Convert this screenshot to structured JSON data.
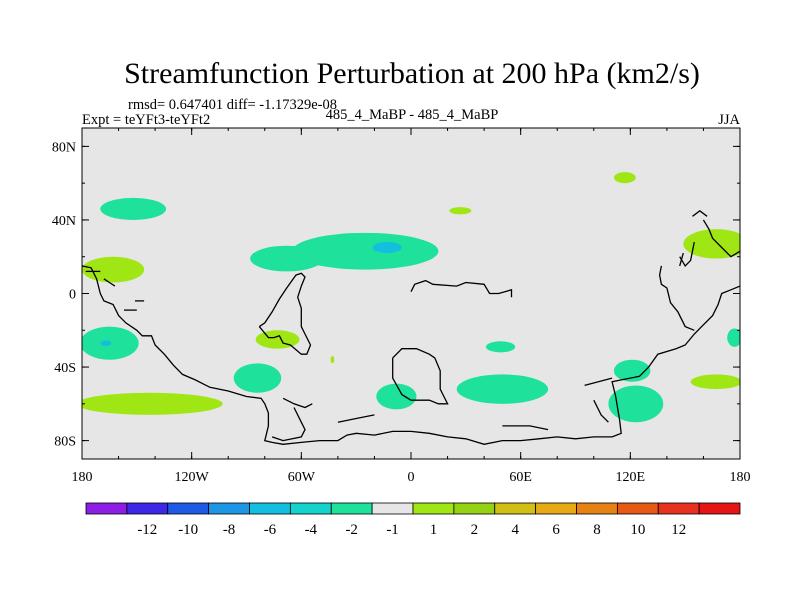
{
  "chart_data": {
    "type": "heatmap",
    "title": "Streamfunction Perturbation at 200 hPa (km2/s)",
    "stats": "rmsd= 0.647401 diff= -1.17329e-08",
    "left_label": "Expt = teYFt3-teYFt2",
    "center_label": "485_4_MaBP - 485_4_MaBP",
    "right_label": "JJA",
    "xlim": [
      -180,
      180
    ],
    "ylim": [
      -90,
      90
    ],
    "x_ticks": [
      {
        "value": -180,
        "label": "180"
      },
      {
        "value": -120,
        "label": "120W"
      },
      {
        "value": -60,
        "label": "60W"
      },
      {
        "value": 0,
        "label": "0"
      },
      {
        "value": 60,
        "label": "60E"
      },
      {
        "value": 120,
        "label": "120E"
      },
      {
        "value": 180,
        "label": "180"
      }
    ],
    "y_ticks": [
      {
        "value": 80,
        "label": "80N"
      },
      {
        "value": 40,
        "label": "40N"
      },
      {
        "value": 0,
        "label": "0"
      },
      {
        "value": -40,
        "label": "40S"
      },
      {
        "value": -80,
        "label": "80S"
      }
    ],
    "colorbar": {
      "colors": [
        "#8c1ee6",
        "#3c28e6",
        "#1e5ae6",
        "#1e96e6",
        "#14bede",
        "#14d2cc",
        "#1ee29c",
        "#e6e6e6",
        "#a0e614",
        "#96d214",
        "#d2be14",
        "#e6aa14",
        "#e68214",
        "#e65a14",
        "#e6321e",
        "#e61414"
      ],
      "labels": [
        "-12",
        "-10",
        "-8",
        "-6",
        "-4",
        "-2",
        "-1",
        "1",
        "2",
        "4",
        "6",
        "8",
        "10",
        "12"
      ]
    },
    "blobs": [
      {
        "level": "-1",
        "color": "#1ee29c",
        "lon": -152,
        "lat": 46,
        "rlon": 18,
        "rlat": 6
      },
      {
        "level": "-1",
        "color": "#1ee29c",
        "lon": -25,
        "lat": 23,
        "rlon": 40,
        "rlat": 10
      },
      {
        "level": "-1",
        "color": "#1ee29c",
        "lon": -68,
        "lat": 19,
        "rlon": 20,
        "rlat": 7
      },
      {
        "level": "-2",
        "color": "#14bede",
        "lon": -13,
        "lat": 25,
        "rlon": 8,
        "rlat": 3
      },
      {
        "level": "-1",
        "color": "#1ee29c",
        "lon": -165,
        "lat": -27,
        "rlon": 16,
        "rlat": 9
      },
      {
        "level": "-2",
        "color": "#14bede",
        "lon": -167,
        "lat": -27,
        "rlon": 3,
        "rlat": 1.5
      },
      {
        "level": "-1",
        "color": "#1ee29c",
        "lon": -84,
        "lat": -46,
        "rlon": 13,
        "rlat": 8
      },
      {
        "level": "-1",
        "color": "#1ee29c",
        "lon": -8,
        "lat": -56,
        "rlon": 11,
        "rlat": 7
      },
      {
        "level": "-1",
        "color": "#1ee29c",
        "lon": 50,
        "lat": -52,
        "rlon": 25,
        "rlat": 8
      },
      {
        "level": "-1",
        "color": "#1ee29c",
        "lon": 49,
        "lat": -29,
        "rlon": 8,
        "rlat": 3
      },
      {
        "level": "-1",
        "color": "#1ee29c",
        "lon": 121,
        "lat": -42,
        "rlon": 10,
        "rlat": 6
      },
      {
        "level": "-1",
        "color": "#1ee29c",
        "lon": 123,
        "lat": -60,
        "rlon": 15,
        "rlat": 10
      },
      {
        "level": "-1",
        "color": "#1ee29c",
        "lon": 177,
        "lat": -24,
        "rlon": 4,
        "rlat": 5
      },
      {
        "level": "1",
        "color": "#a0e614",
        "lon": -163,
        "lat": 13,
        "rlon": 17,
        "rlat": 7
      },
      {
        "level": "1",
        "color": "#a0e614",
        "lon": -143,
        "lat": -60,
        "rlon": 40,
        "rlat": 6
      },
      {
        "level": "1",
        "color": "#a0e614",
        "lon": -73,
        "lat": -25,
        "rlon": 12,
        "rlat": 5
      },
      {
        "level": "1",
        "color": "#a0e614",
        "lon": 117,
        "lat": 63,
        "rlon": 6,
        "rlat": 3
      },
      {
        "level": "1",
        "color": "#a0e614",
        "lon": 27,
        "lat": 45,
        "rlon": 6,
        "rlat": 2
      },
      {
        "level": "1",
        "color": "#a0e614",
        "lon": 167,
        "lat": 27,
        "rlon": 18,
        "rlat": 8
      },
      {
        "level": "1",
        "color": "#a0e614",
        "lon": 167,
        "lat": -48,
        "rlon": 14,
        "rlat": 4
      },
      {
        "level": "1",
        "color": "#a0e614",
        "lon": -43,
        "lat": -36,
        "rlon": 1,
        "rlat": 2
      }
    ],
    "coastlines": [
      [
        [
          -180,
          15
        ],
        [
          -175,
          14
        ],
        [
          -172,
          8
        ],
        [
          -170,
          0
        ],
        [
          -168,
          -4
        ],
        [
          -163,
          -6
        ],
        [
          -160,
          -12
        ],
        [
          -156,
          -16
        ],
        [
          -150,
          -20
        ],
        [
          -147,
          -23
        ],
        [
          -142,
          -23
        ],
        [
          -140,
          -28
        ],
        [
          -135,
          -33
        ],
        [
          -130,
          -39
        ],
        [
          -125,
          -44
        ],
        [
          -118,
          -47
        ],
        [
          -110,
          -51
        ],
        [
          -100,
          -53
        ],
        [
          -90,
          -56
        ],
        [
          -82,
          -57
        ],
        [
          -80,
          -60
        ],
        [
          -78,
          -65
        ],
        [
          -78,
          -72
        ],
        [
          -79,
          -76
        ],
        [
          -80,
          -80
        ],
        [
          -76,
          -81
        ],
        [
          -70,
          -82
        ],
        [
          -60,
          -81
        ],
        [
          -50,
          -80
        ],
        [
          -40,
          -80
        ],
        [
          -35,
          -77
        ],
        [
          -30,
          -76
        ],
        [
          -20,
          -77
        ],
        [
          -10,
          -75
        ],
        [
          0,
          -75
        ],
        [
          10,
          -76
        ],
        [
          20,
          -78
        ],
        [
          30,
          -79
        ],
        [
          40,
          -82
        ],
        [
          50,
          -80
        ],
        [
          60,
          -80
        ],
        [
          70,
          -79
        ],
        [
          80,
          -78
        ],
        [
          90,
          -79
        ],
        [
          100,
          -78
        ],
        [
          110,
          -78
        ],
        [
          115,
          -76
        ],
        [
          114,
          -68
        ],
        [
          113,
          -62
        ],
        [
          112,
          -56
        ],
        [
          110,
          -48
        ],
        [
          115,
          -47
        ],
        [
          125,
          -45
        ],
        [
          130,
          -40
        ],
        [
          135,
          -33
        ],
        [
          145,
          -30
        ],
        [
          150,
          -28
        ],
        [
          155,
          -22
        ],
        [
          160,
          -17
        ],
        [
          165,
          -12
        ],
        [
          168,
          -6
        ],
        [
          170,
          0
        ],
        [
          175,
          2
        ],
        [
          180,
          4
        ]
      ],
      [
        [
          -178,
          12
        ],
        [
          -170,
          12
        ]
      ],
      [
        [
          -168,
          8
        ],
        [
          -165,
          6
        ],
        [
          -162,
          4
        ]
      ],
      [
        [
          -151,
          -4
        ],
        [
          -146,
          -4
        ]
      ],
      [
        [
          -157,
          -9
        ],
        [
          -150,
          -9
        ]
      ],
      [
        [
          -83,
          -18
        ],
        [
          -78,
          -24
        ],
        [
          -75,
          -24
        ],
        [
          -72,
          -23
        ],
        [
          -70,
          -27
        ],
        [
          -66,
          -28
        ],
        [
          -60,
          -33
        ],
        [
          -57,
          -33
        ],
        [
          -55,
          -28
        ],
        [
          -58,
          -22
        ],
        [
          -60,
          -18
        ],
        [
          -60,
          -8
        ],
        [
          -62,
          -2
        ],
        [
          -60,
          4
        ],
        [
          -58,
          9
        ],
        [
          -60,
          11
        ],
        [
          -63,
          10
        ],
        [
          -68,
          3
        ],
        [
          -72,
          -3
        ],
        [
          -76,
          -10
        ],
        [
          -80,
          -16
        ],
        [
          -83,
          -18
        ]
      ],
      [
        [
          -70,
          -57
        ],
        [
          -64,
          -60
        ],
        [
          -58,
          -62
        ],
        [
          -54,
          -60
        ]
      ],
      [
        [
          -64,
          -62
        ],
        [
          -62,
          -66
        ],
        [
          -60,
          -70
        ],
        [
          -58,
          -74
        ],
        [
          -60,
          -78
        ],
        [
          -70,
          -80
        ],
        [
          -76,
          -78
        ]
      ],
      [
        [
          -10,
          -35
        ],
        [
          -5,
          -30
        ],
        [
          3,
          -30
        ],
        [
          10,
          -33
        ],
        [
          13,
          -35
        ],
        [
          16,
          -42
        ],
        [
          16,
          -52
        ],
        [
          18,
          -56
        ],
        [
          20,
          -60
        ],
        [
          15,
          -60
        ],
        [
          10,
          -58
        ],
        [
          0,
          -58
        ],
        [
          -5,
          -55
        ],
        [
          -10,
          -46
        ],
        [
          -10,
          -35
        ]
      ],
      [
        [
          0,
          1
        ],
        [
          2,
          5
        ],
        [
          8,
          7
        ],
        [
          12,
          5
        ],
        [
          25,
          4
        ],
        [
          30,
          6
        ],
        [
          40,
          5
        ],
        [
          43,
          0
        ],
        [
          48,
          0
        ],
        [
          55,
          2
        ],
        [
          55,
          -2
        ]
      ],
      [
        [
          -40,
          -70
        ],
        [
          -30,
          -68
        ],
        [
          -20,
          -66
        ]
      ],
      [
        [
          50,
          -72
        ],
        [
          65,
          -72
        ],
        [
          75,
          -74
        ]
      ],
      [
        [
          95,
          -50
        ],
        [
          110,
          -46
        ]
      ],
      [
        [
          100,
          -58
        ],
        [
          104,
          -66
        ],
        [
          108,
          -70
        ]
      ],
      [
        [
          137,
          15
        ],
        [
          136,
          10
        ],
        [
          137,
          5
        ],
        [
          140,
          3
        ],
        [
          142,
          -5
        ],
        [
          146,
          -10
        ],
        [
          150,
          -18
        ],
        [
          155,
          -20
        ]
      ],
      [
        [
          147,
          20
        ],
        [
          150,
          15
        ],
        [
          153,
          18
        ],
        [
          155,
          28
        ]
      ],
      [
        [
          160,
          40
        ],
        [
          163,
          35
        ],
        [
          165,
          30
        ],
        [
          170,
          25
        ],
        [
          175,
          20
        ],
        [
          180,
          23
        ]
      ],
      [
        [
          154,
          42
        ],
        [
          158,
          45
        ],
        [
          162,
          42
        ]
      ],
      [
        [
          149,
          22
        ],
        [
          147,
          15
        ]
      ]
    ]
  }
}
